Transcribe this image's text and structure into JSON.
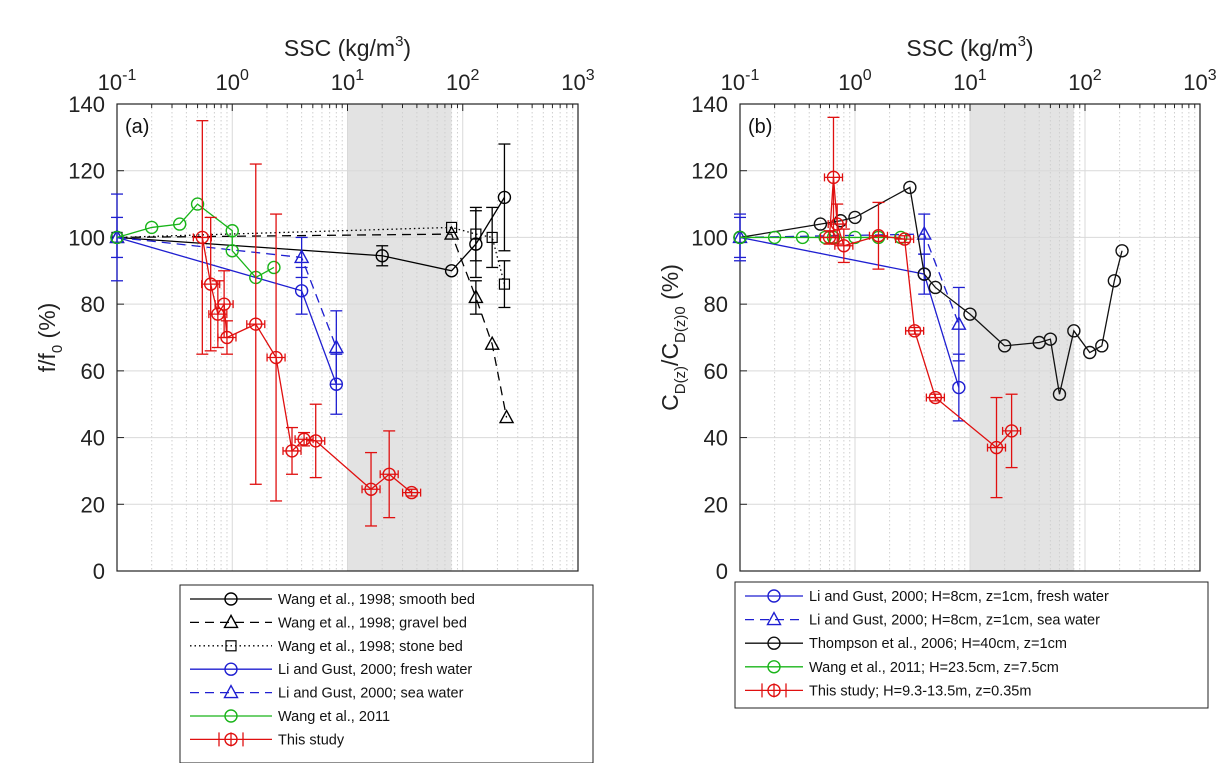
{
  "chart_data": [
    {
      "type": "line",
      "panel_label": "(a)",
      "title": "",
      "xlabel": "SSC (kg/m³)",
      "ylabel": "f/f₀ (%)",
      "xscale": "log",
      "xaxis_position": "top",
      "xlim": [
        0.1,
        1000
      ],
      "ylim": [
        0,
        140
      ],
      "xticks": [
        {
          "value": 0.1,
          "base": "10",
          "exp": "-1"
        },
        {
          "value": 1,
          "base": "10",
          "exp": "0"
        },
        {
          "value": 10,
          "base": "10",
          "exp": "1"
        },
        {
          "value": 100,
          "base": "10",
          "exp": "2"
        },
        {
          "value": 1000,
          "base": "10",
          "exp": "3"
        }
      ],
      "yticks": [
        "0",
        "20",
        "40",
        "60",
        "80",
        "100",
        "120",
        "140"
      ],
      "grid": true,
      "shaded_region": [
        10,
        80
      ],
      "legend_position": "below",
      "series": [
        {
          "name": "Wang et al., 1998; smooth bed",
          "color": "#000000",
          "dash": "solid",
          "marker": "circle",
          "points": [
            {
              "x": 0.1,
              "y": 100
            },
            {
              "x": 20,
              "y": 94.5,
              "err": 3
            },
            {
              "x": 80,
              "y": 90
            },
            {
              "x": 130,
              "y": 98,
              "err": 10
            },
            {
              "x": 230,
              "y": 112,
              "err": 16
            }
          ]
        },
        {
          "name": "Wang et al., 1998; gravel bed",
          "color": "#000000",
          "dash": "dashed",
          "marker": "triangle",
          "points": [
            {
              "x": 0.1,
              "y": 100
            },
            {
              "x": 80,
              "y": 101
            },
            {
              "x": 130,
              "y": 82,
              "err": 5
            },
            {
              "x": 180,
              "y": 68
            },
            {
              "x": 240,
              "y": 46
            }
          ]
        },
        {
          "name": "Wang et al., 1998; stone bed",
          "color": "#000000",
          "dash": "dotted",
          "marker": "square",
          "points": [
            {
              "x": 0.1,
              "y": 100
            },
            {
              "x": 80,
              "y": 103
            },
            {
              "x": 130,
              "y": 101,
              "err": 8
            },
            {
              "x": 180,
              "y": 100,
              "err": 9
            },
            {
              "x": 230,
              "y": 86,
              "err": 7
            }
          ]
        },
        {
          "name": "Li and Gust, 2000; fresh water",
          "color": "#1f1fd1",
          "dash": "solid",
          "marker": "circle",
          "points": [
            {
              "x": 0.1,
              "y": 100,
              "err": 13
            },
            {
              "x": 4,
              "y": 84,
              "err": 7
            },
            {
              "x": 8,
              "y": 56,
              "err": 9
            }
          ]
        },
        {
          "name": "Li and Gust, 2000; sea water",
          "color": "#1f1fd1",
          "dash": "dashed",
          "marker": "triangle",
          "points": [
            {
              "x": 0.1,
              "y": 100,
              "err": 6
            },
            {
              "x": 4,
              "y": 94,
              "err": 6
            },
            {
              "x": 8,
              "y": 67,
              "err": 11
            }
          ]
        },
        {
          "name": "Wang et al., 2011",
          "color": "#19b419",
          "dash": "solid",
          "marker": "circle",
          "points": [
            {
              "x": 0.1,
              "y": 100
            },
            {
              "x": 0.2,
              "y": 103
            },
            {
              "x": 0.35,
              "y": 104
            },
            {
              "x": 0.5,
              "y": 110
            },
            {
              "x": 1,
              "y": 102
            },
            {
              "x": 1,
              "y": 96
            },
            {
              "x": 1.6,
              "y": 88
            },
            {
              "x": 2.3,
              "y": 91
            }
          ]
        },
        {
          "name": "This study",
          "color": "#e01010",
          "dash": "solid",
          "marker": "circle",
          "xerr": true,
          "points": [
            {
              "x": 0.55,
              "y": 100,
              "err": 35
            },
            {
              "x": 0.65,
              "y": 86,
              "err": 20
            },
            {
              "x": 0.75,
              "y": 77,
              "err": 10
            },
            {
              "x": 0.85,
              "y": 80,
              "err": 10
            },
            {
              "x": 0.9,
              "y": 70,
              "err": 5
            },
            {
              "x": 1.6,
              "y": 74,
              "err": 48
            },
            {
              "x": 2.4,
              "y": 64,
              "err": 43
            },
            {
              "x": 3.3,
              "y": 36,
              "err": 7
            },
            {
              "x": 4.2,
              "y": 39.5,
              "err": 2
            },
            {
              "x": 5.3,
              "y": 39,
              "err": 11
            },
            {
              "x": 16,
              "y": 24.5,
              "err": 11
            },
            {
              "x": 23,
              "y": 29,
              "err": 13
            },
            {
              "x": 36,
              "y": 23.5,
              "err": 1
            }
          ]
        }
      ]
    },
    {
      "type": "line",
      "panel_label": "(b)",
      "title": "",
      "xlabel": "SSC (kg/m³)",
      "ylabel": "C_D(z)/C_D(z)0 (%)",
      "xscale": "log",
      "xaxis_position": "top",
      "xlim": [
        0.1,
        1000
      ],
      "ylim": [
        0,
        140
      ],
      "xticks": [
        {
          "value": 0.1,
          "base": "10",
          "exp": "-1"
        },
        {
          "value": 1,
          "base": "10",
          "exp": "0"
        },
        {
          "value": 10,
          "base": "10",
          "exp": "1"
        },
        {
          "value": 100,
          "base": "10",
          "exp": "2"
        },
        {
          "value": 1000,
          "base": "10",
          "exp": "3"
        }
      ],
      "yticks": [
        "0",
        "20",
        "40",
        "60",
        "80",
        "100",
        "120",
        "140"
      ],
      "grid": true,
      "shaded_region": [
        10,
        80
      ],
      "legend_position": "below",
      "series": [
        {
          "name": "Li and Gust, 2000; H=8cm, z=1cm, fresh water",
          "color": "#1f1fd1",
          "dash": "solid",
          "marker": "circle",
          "points": [
            {
              "x": 0.1,
              "y": 100,
              "err": 7
            },
            {
              "x": 4,
              "y": 89,
              "err": 6
            },
            {
              "x": 8,
              "y": 55,
              "err": 10
            }
          ]
        },
        {
          "name": "Li and Gust, 2000; H=8cm, z=1cm, sea water",
          "color": "#1f1fd1",
          "dash": "dashed",
          "marker": "triangle",
          "points": [
            {
              "x": 0.1,
              "y": 100,
              "err": 6
            },
            {
              "x": 4,
              "y": 101,
              "err": 6
            },
            {
              "x": 8,
              "y": 74,
              "err": 11
            }
          ]
        },
        {
          "name": "Thompson et al., 2006; H=40cm, z=1cm",
          "color": "#111111",
          "dash": "solid",
          "marker": "circle",
          "points": [
            {
              "x": 0.1,
              "y": 100
            },
            {
              "x": 0.5,
              "y": 104
            },
            {
              "x": 0.75,
              "y": 105
            },
            {
              "x": 1,
              "y": 106
            },
            {
              "x": 3,
              "y": 115
            },
            {
              "x": 4,
              "y": 89
            },
            {
              "x": 5,
              "y": 85
            },
            {
              "x": 10,
              "y": 77
            },
            {
              "x": 20,
              "y": 67.5
            },
            {
              "x": 40,
              "y": 68.5
            },
            {
              "x": 50,
              "y": 69.5
            },
            {
              "x": 60,
              "y": 53
            },
            {
              "x": 80,
              "y": 72
            },
            {
              "x": 110,
              "y": 65.5
            },
            {
              "x": 140,
              "y": 67.5
            },
            {
              "x": 180,
              "y": 87
            },
            {
              "x": 210,
              "y": 96
            }
          ]
        },
        {
          "name": "Wang et al., 2011; H=23.5cm, z=7.5cm",
          "color": "#19b419",
          "dash": "solid",
          "marker": "circle",
          "points": [
            {
              "x": 0.1,
              "y": 100
            },
            {
              "x": 0.2,
              "y": 100
            },
            {
              "x": 0.35,
              "y": 100
            },
            {
              "x": 0.55,
              "y": 100
            },
            {
              "x": 0.65,
              "y": 100
            },
            {
              "x": 1,
              "y": 100
            },
            {
              "x": 1.6,
              "y": 100
            },
            {
              "x": 2.5,
              "y": 100
            }
          ]
        },
        {
          "name": "This study; H=9.3-13.5m, z=0.35m",
          "color": "#e01010",
          "dash": "solid",
          "marker": "circle",
          "xerr": true,
          "points": [
            {
              "x": 0.6,
              "y": 100,
              "err": 2
            },
            {
              "x": 0.65,
              "y": 118,
              "err": 18
            },
            {
              "x": 0.7,
              "y": 104,
              "err": 6
            },
            {
              "x": 0.8,
              "y": 97.5,
              "err": 5
            },
            {
              "x": 1.6,
              "y": 100.5,
              "err": 10
            },
            {
              "x": 2.7,
              "y": 99.5,
              "err": 1
            },
            {
              "x": 3.3,
              "y": 72,
              "err": 1
            },
            {
              "x": 5,
              "y": 52,
              "err": 1
            },
            {
              "x": 17,
              "y": 37,
              "err": 15
            },
            {
              "x": 23,
              "y": 42,
              "err": 11
            }
          ]
        }
      ]
    }
  ]
}
